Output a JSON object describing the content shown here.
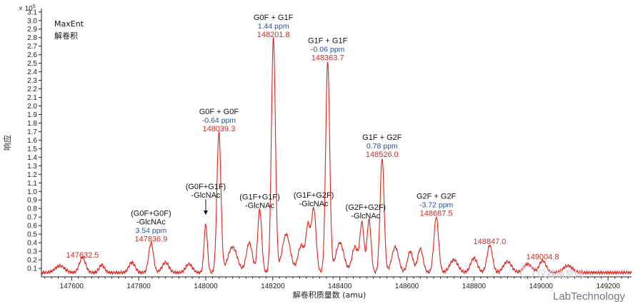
{
  "chart_data": {
    "type": "line",
    "title": "",
    "xlabel": "解卷积质量数 (amu)",
    "ylabel": "响应",
    "y_multiplier": "× 10",
    "y_multiplier_exp": "5",
    "xlim": [
      147510,
      149270
    ],
    "ylim": [
      0,
      3.14
    ],
    "x_ticks": [
      147600,
      147800,
      148000,
      148200,
      148400,
      148600,
      148800,
      149000,
      149200
    ],
    "y_ticks": [
      0.1,
      0.2,
      0.3,
      0.4,
      0.5,
      0.6,
      0.7,
      0.8,
      0.9,
      1.0,
      1.1,
      1.2,
      1.3,
      1.4,
      1.5,
      1.6,
      1.7,
      1.8,
      1.9,
      2.0,
      2.1,
      2.2,
      2.3,
      2.4,
      2.5,
      2.6,
      2.7,
      2.8,
      2.9,
      3.0,
      3.1
    ],
    "grid": false,
    "line_color": "#e0241b",
    "baseline": 0.05,
    "peaks": [
      {
        "x": 147565,
        "y": 0.08,
        "w": 14
      },
      {
        "x": 147632.5,
        "y": 0.18,
        "w": 9
      },
      {
        "x": 147690,
        "y": 0.09,
        "w": 8
      },
      {
        "x": 147780,
        "y": 0.12,
        "w": 9
      },
      {
        "x": 147836.9,
        "y": 0.35,
        "w": 7
      },
      {
        "x": 147880,
        "y": 0.12,
        "w": 10
      },
      {
        "x": 147950,
        "y": 0.1,
        "w": 10
      },
      {
        "x": 148000,
        "y": 0.56,
        "w": 5
      },
      {
        "x": 148039.3,
        "y": 1.64,
        "w": 6
      },
      {
        "x": 148080,
        "y": 0.3,
        "w": 14
      },
      {
        "x": 148130,
        "y": 0.35,
        "w": 9
      },
      {
        "x": 148161,
        "y": 0.74,
        "w": 6
      },
      {
        "x": 148201.8,
        "y": 2.74,
        "w": 6
      },
      {
        "x": 148240,
        "y": 0.45,
        "w": 12
      },
      {
        "x": 148285,
        "y": 0.32,
        "w": 10
      },
      {
        "x": 148305,
        "y": 0.5,
        "w": 6
      },
      {
        "x": 148322,
        "y": 0.75,
        "w": 7
      },
      {
        "x": 148363.7,
        "y": 2.47,
        "w": 6
      },
      {
        "x": 148400,
        "y": 0.35,
        "w": 12
      },
      {
        "x": 148445,
        "y": 0.3,
        "w": 9
      },
      {
        "x": 148466,
        "y": 0.57,
        "w": 6
      },
      {
        "x": 148487,
        "y": 0.62,
        "w": 6
      },
      {
        "x": 148526,
        "y": 1.34,
        "w": 6
      },
      {
        "x": 148565,
        "y": 0.3,
        "w": 10
      },
      {
        "x": 148610,
        "y": 0.25,
        "w": 8
      },
      {
        "x": 148640,
        "y": 0.28,
        "w": 8
      },
      {
        "x": 148687.5,
        "y": 0.65,
        "w": 7
      },
      {
        "x": 148740,
        "y": 0.15,
        "w": 12
      },
      {
        "x": 148800,
        "y": 0.17,
        "w": 10
      },
      {
        "x": 148847,
        "y": 0.32,
        "w": 8
      },
      {
        "x": 148900,
        "y": 0.13,
        "w": 12
      },
      {
        "x": 148960,
        "y": 0.1,
        "w": 12
      },
      {
        "x": 149004.8,
        "y": 0.14,
        "w": 10
      },
      {
        "x": 149080,
        "y": 0.08,
        "w": 14
      }
    ],
    "annotations": [
      {
        "x": 147632.5,
        "y": 0.2,
        "lines": [
          {
            "t": "147632.5",
            "c": "r"
          }
        ]
      },
      {
        "x": 147836.9,
        "y": 0.39,
        "lines": [
          {
            "t": "(G0F+G0F)",
            "c": "k"
          },
          {
            "t": "-GlcNAc",
            "c": "k"
          },
          {
            "t": "3.54 ppm",
            "c": "b"
          },
          {
            "t": "147836.9",
            "c": "r"
          }
        ]
      },
      {
        "x": 148000,
        "y": 0.7,
        "arrow": true,
        "lines": [
          {
            "t": "(G0F+G1F)",
            "c": "k"
          },
          {
            "t": "-GlcNAc",
            "c": "k"
          }
        ]
      },
      {
        "x": 148039.3,
        "y": 1.68,
        "lines": [
          {
            "t": "G0F + G0F",
            "c": "k"
          },
          {
            "t": "-0.64 ppm",
            "c": "b"
          },
          {
            "t": "148039.3",
            "c": "r"
          }
        ]
      },
      {
        "x": 148161,
        "y": 0.78,
        "lines": [
          {
            "t": "(G1F+G1F)",
            "c": "k"
          },
          {
            "t": "-GlcNAc",
            "c": "k"
          }
        ]
      },
      {
        "x": 148201.8,
        "y": 2.78,
        "lines": [
          {
            "t": "G0F + G1F",
            "c": "k"
          },
          {
            "t": "1.44 ppm",
            "c": "b"
          },
          {
            "t": "148201.8",
            "c": "r"
          }
        ]
      },
      {
        "x": 148322,
        "y": 0.8,
        "lines": [
          {
            "t": "(G1F+G2F)",
            "c": "k"
          },
          {
            "t": "-GlcNAc",
            "c": "k"
          }
        ]
      },
      {
        "x": 148363.7,
        "y": 2.51,
        "lines": [
          {
            "t": "G1F + G1F",
            "c": "k"
          },
          {
            "t": "-0.06 ppm",
            "c": "b"
          },
          {
            "t": "148363.7",
            "c": "r"
          }
        ]
      },
      {
        "x": 148477,
        "y": 0.66,
        "lines": [
          {
            "t": "(G2F+G2F)",
            "c": "k"
          },
          {
            "t": "-GlcNAc",
            "c": "k"
          }
        ]
      },
      {
        "x": 148526,
        "y": 1.38,
        "lines": [
          {
            "t": "G1F + G2F",
            "c": "k"
          },
          {
            "t": "0.78 ppm",
            "c": "b"
          },
          {
            "t": "148526.0",
            "c": "r"
          }
        ]
      },
      {
        "x": 148687.5,
        "y": 0.69,
        "lines": [
          {
            "t": "G2F + G2F",
            "c": "k"
          },
          {
            "t": "-3.72 ppm",
            "c": "b"
          },
          {
            "t": "148687.5",
            "c": "r"
          }
        ]
      },
      {
        "x": 148847,
        "y": 0.36,
        "lines": [
          {
            "t": "148847.0",
            "c": "r"
          }
        ]
      },
      {
        "x": 149004.8,
        "y": 0.18,
        "lines": [
          {
            "t": "149004.8",
            "c": "r"
          }
        ]
      }
    ]
  },
  "info": {
    "line1": "MaxEnt",
    "line2": "解卷积"
  },
  "watermark": {
    "brand": "LabTechnology",
    "site": "仪器信息网"
  },
  "colors": {
    "black": "#111111",
    "blue": "#2a4fa3",
    "red": "#d8281e"
  }
}
